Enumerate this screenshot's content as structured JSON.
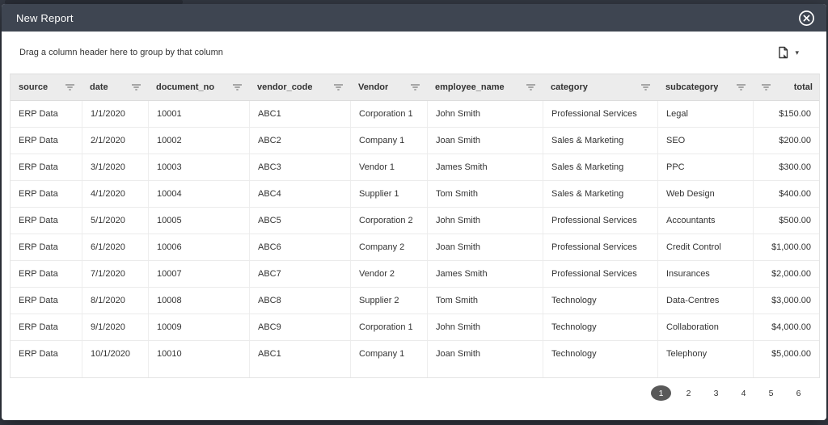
{
  "modal": {
    "title": "New Report"
  },
  "toolbar": {
    "group_hint": "Drag a column header here to group by that column",
    "export_caret": "▾"
  },
  "grid": {
    "columns": [
      {
        "key": "source",
        "label": "source",
        "width": 88,
        "align": "left"
      },
      {
        "key": "date",
        "label": "date",
        "width": 82,
        "align": "left"
      },
      {
        "key": "document_no",
        "label": "document_no",
        "width": 125,
        "align": "left"
      },
      {
        "key": "vendor_code",
        "label": "vendor_code",
        "width": 125,
        "align": "left"
      },
      {
        "key": "vendor",
        "label": "Vendor",
        "width": 95,
        "align": "left"
      },
      {
        "key": "employee_name",
        "label": "employee_name",
        "width": 143,
        "align": "left"
      },
      {
        "key": "category",
        "label": "category",
        "width": 142,
        "align": "left"
      },
      {
        "key": "subcategory",
        "label": "subcategory",
        "width": 118,
        "align": "left"
      },
      {
        "key": "total",
        "label": "total",
        "width": 82,
        "align": "right",
        "filter_icon_position": "left"
      }
    ],
    "rows": [
      [
        "ERP Data",
        "1/1/2020",
        "10001",
        "ABC1",
        "Corporation 1",
        "John Smith",
        "Professional Services",
        "Legal",
        "$150.00"
      ],
      [
        "ERP Data",
        "2/1/2020",
        "10002",
        "ABC2",
        "Company 1",
        "Joan Smith",
        "Sales & Marketing",
        "SEO",
        "$200.00"
      ],
      [
        "ERP Data",
        "3/1/2020",
        "10003",
        "ABC3",
        "Vendor 1",
        "James Smith",
        "Sales & Marketing",
        "PPC",
        "$300.00"
      ],
      [
        "ERP Data",
        "4/1/2020",
        "10004",
        "ABC4",
        "Supplier 1",
        "Tom Smith",
        "Sales & Marketing",
        "Web Design",
        "$400.00"
      ],
      [
        "ERP Data",
        "5/1/2020",
        "10005",
        "ABC5",
        "Corporation 2",
        "John Smith",
        "Professional Services",
        "Accountants",
        "$500.00"
      ],
      [
        "ERP Data",
        "6/1/2020",
        "10006",
        "ABC6",
        "Company 2",
        "Joan Smith",
        "Professional Services",
        "Credit Control",
        "$1,000.00"
      ],
      [
        "ERP Data",
        "7/1/2020",
        "10007",
        "ABC7",
        "Vendor 2",
        "James Smith",
        "Professional Services",
        "Insurances",
        "$2,000.00"
      ],
      [
        "ERP Data",
        "8/1/2020",
        "10008",
        "ABC8",
        "Supplier 2",
        "Tom Smith",
        "Technology",
        "Data-Centres",
        "$3,000.00"
      ],
      [
        "ERP Data",
        "9/1/2020",
        "10009",
        "ABC9",
        "Corporation 1",
        "John Smith",
        "Technology",
        "Collaboration",
        "$4,000.00"
      ],
      [
        "ERP Data",
        "10/1/2020",
        "10010",
        "ABC1",
        "Company 1",
        "Joan Smith",
        "Technology",
        "Telephony",
        "$5,000.00"
      ]
    ]
  },
  "pagination": {
    "pages": [
      "1",
      "2",
      "3",
      "4",
      "5",
      "6"
    ],
    "active_page": "1"
  },
  "colors": {
    "header_bar": "#3e4551",
    "grid_header_bg": "#ececec",
    "active_page_bg": "#595959",
    "backdrop": "#343943",
    "text": "#333333"
  }
}
